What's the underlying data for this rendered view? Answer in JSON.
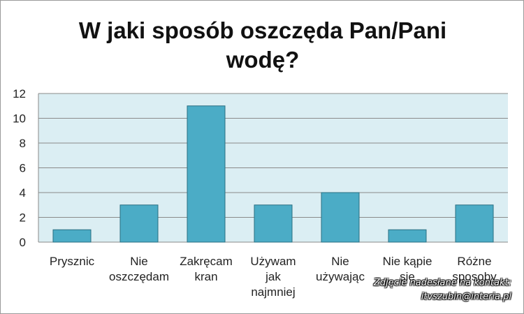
{
  "chart_data": {
    "type": "bar",
    "title_lines": [
      "W jaki sposób oszczęda Pan/Pani",
      "wodę?"
    ],
    "categories": [
      [
        "Prysznic"
      ],
      [
        "Nie",
        "oszczędam"
      ],
      [
        "Zakręcam",
        "kran"
      ],
      [
        "Używam",
        "jak",
        "najmniej"
      ],
      [
        "Nie",
        "używając"
      ],
      [
        "Nie kąpie",
        "się"
      ],
      [
        "Różne",
        "sposoby"
      ]
    ],
    "values": [
      1,
      3,
      11,
      3,
      4,
      1,
      3
    ],
    "ylim": [
      0,
      12
    ],
    "yticks": [
      "0",
      "2",
      "4",
      "6",
      "8",
      "10",
      "12"
    ],
    "grid": true,
    "legend": "none",
    "colors": {
      "bar_fill": "#4bacc6",
      "bar_stroke": "#2a6f82",
      "plot_bg": "#dbeef3",
      "grid": "#8a8a8a"
    }
  },
  "watermark": {
    "line1": "Zdjęcie nadesłane na kontakt:",
    "line2": "itvszubin@interia.pl"
  }
}
